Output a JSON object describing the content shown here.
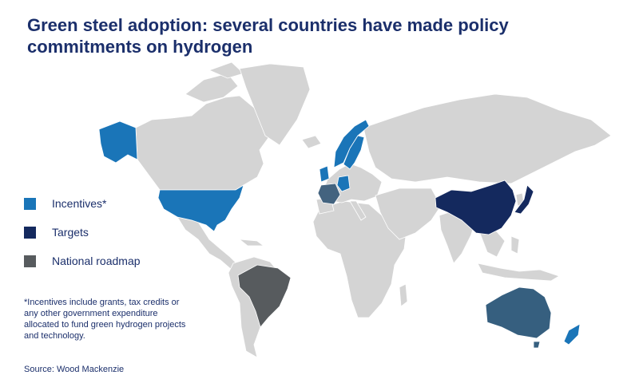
{
  "title": "Green steel adoption: several countries have made policy commitments on hydrogen",
  "legend": [
    {
      "label": "Incentives*",
      "color": "#1a75b8"
    },
    {
      "label": "Targets",
      "color": "#14295e"
    },
    {
      "label": "National roadmap",
      "color": "#575b5e"
    }
  ],
  "note": "*Incentives include grants, tax credits or any other government expenditure allocated to fund green hydrogen projects and technology.",
  "source": "Source: Wood Mackenzie",
  "colors": {
    "land": "#d4d4d4",
    "incentives": "#1a75b8",
    "targets": "#14295e",
    "national_roadmap": "#575b5e",
    "australia": "#365f7f",
    "france": "#43637f",
    "text": "#1b2f6b"
  }
}
